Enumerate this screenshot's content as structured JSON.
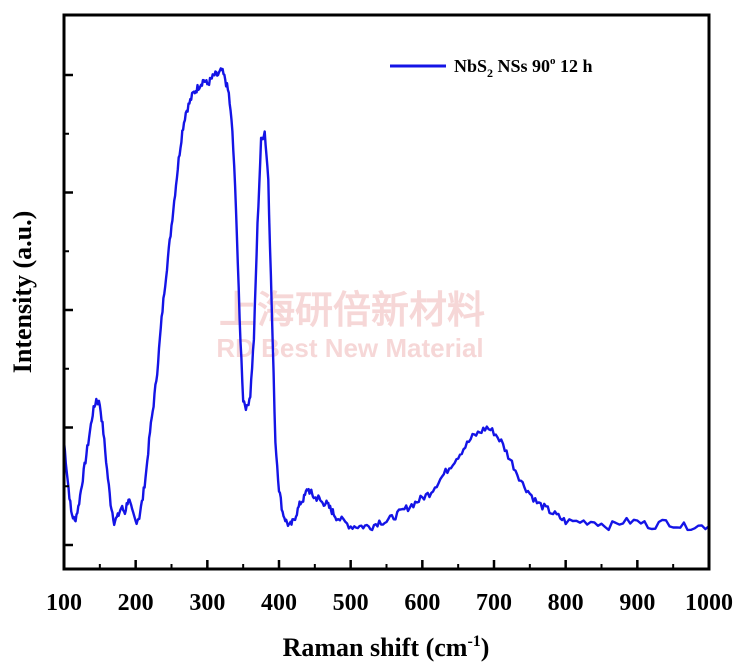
{
  "chart_data": {
    "type": "line",
    "xlabel": "Raman shift (cm",
    "xlabel_sup": "-1",
    "xlabel_end": ")",
    "ylabel": "Intensity (a.u.)",
    "xlim": [
      100,
      1000
    ],
    "ylim": [
      0,
      100
    ],
    "xticks": [
      "100",
      "200",
      "300",
      "400",
      "500",
      "600",
      "700",
      "800",
      "900",
      "1000"
    ],
    "grid": false,
    "legend_position": "top-right",
    "series": [
      {
        "name": "NbS2 NSs 90° 12 h",
        "name_main": "NbS",
        "name_sub": "2",
        "name_rest": " NSs 90",
        "name_deg": "o",
        "name_tail": " 12 h",
        "color": "#1414e6",
        "x": [
          100,
          105,
          110,
          115,
          120,
          125,
          130,
          135,
          140,
          145,
          150,
          155,
          160,
          165,
          170,
          175,
          180,
          185,
          190,
          195,
          200,
          205,
          210,
          215,
          220,
          225,
          230,
          235,
          240,
          245,
          250,
          255,
          260,
          265,
          270,
          275,
          280,
          285,
          290,
          295,
          300,
          305,
          310,
          315,
          320,
          325,
          330,
          335,
          340,
          345,
          350,
          355,
          360,
          365,
          370,
          375,
          380,
          385,
          390,
          395,
          400,
          405,
          410,
          415,
          420,
          425,
          430,
          435,
          440,
          445,
          450,
          455,
          460,
          465,
          470,
          475,
          480,
          490,
          500,
          510,
          520,
          530,
          540,
          550,
          560,
          570,
          580,
          590,
          600,
          610,
          620,
          630,
          640,
          650,
          660,
          670,
          680,
          690,
          700,
          710,
          720,
          730,
          740,
          750,
          760,
          770,
          780,
          790,
          800,
          820,
          840,
          860,
          880,
          900,
          920,
          940,
          960,
          980,
          1000
        ],
        "y": [
          22,
          14,
          7,
          5,
          8,
          13,
          18,
          23,
          28,
          31,
          30,
          24,
          16,
          9,
          5,
          6,
          8,
          7,
          10,
          7,
          5,
          6,
          10,
          16,
          24,
          30,
          37,
          46,
          54,
          61,
          68,
          75,
          82,
          88,
          92,
          94,
          96,
          97,
          98,
          99,
          98,
          99,
          100,
          100,
          101,
          99,
          96,
          88,
          72,
          48,
          31,
          29,
          32,
          44,
          68,
          86,
          88,
          78,
          50,
          22,
          12,
          7,
          5,
          4,
          5,
          7,
          9,
          10,
          12,
          11,
          10,
          10,
          9,
          9,
          8,
          7,
          6,
          5,
          4,
          4,
          4,
          4,
          5,
          5,
          6,
          7,
          8,
          9,
          10,
          11,
          13,
          15,
          17,
          19,
          21,
          23,
          24,
          25,
          24,
          22,
          19,
          16,
          13,
          11,
          9,
          8,
          7,
          6,
          5,
          5,
          5,
          4,
          5,
          5,
          4,
          5,
          4,
          4,
          4
        ]
      }
    ]
  },
  "watermark": {
    "cn": "上海研倍新材料",
    "en": "RD Best New Material"
  }
}
